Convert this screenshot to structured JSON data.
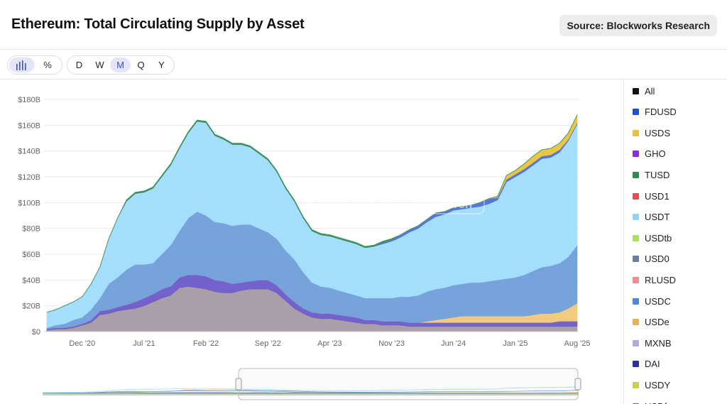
{
  "header": {
    "title": "Ethereum: Total Circulating Supply by Asset",
    "source_label": "Source: Blockworks Research"
  },
  "toolbar": {
    "modes": [
      {
        "name": "bar-chart-icon",
        "active": true
      },
      {
        "name": "percent-icon",
        "glyph": "%",
        "active": false
      }
    ],
    "periods": [
      {
        "label": "D",
        "active": false
      },
      {
        "label": "W",
        "active": false
      },
      {
        "label": "M",
        "active": true
      },
      {
        "label": "Q",
        "active": false
      },
      {
        "label": "Y",
        "active": false
      }
    ]
  },
  "watermark": {
    "brand": "Blockworks",
    "badge": "Research"
  },
  "colors": {
    "All": "#111111",
    "FDUSD": "#1f4ed8",
    "USDS": "#e8c33a",
    "GHO": "#8b2be2",
    "TUSD": "#2e8b57",
    "USD1": "#e05050",
    "USDT": "#8fd6fb",
    "USDtb": "#a8e05a",
    "USD0": "#6a7ea0",
    "RLUSD": "#f08c8c",
    "USDC": "#6a9fd8",
    "USDe": "#f0c070",
    "MXNB": "#b0a8e0",
    "DAI": "#2e2f9c",
    "USDY": "#c8d050",
    "USDf": "#b040c0",
    "base": "#a49aa4",
    "grid": "#e8e8e8",
    "axis_text": "#666666"
  },
  "legend": [
    {
      "label": "All",
      "color": "#111111"
    },
    {
      "label": "FDUSD",
      "color": "#1f4ed8"
    },
    {
      "label": "USDS",
      "color": "#e8c33a"
    },
    {
      "label": "GHO",
      "color": "#8b2be2"
    },
    {
      "label": "TUSD",
      "color": "#2e8b57"
    },
    {
      "label": "USD1",
      "color": "#e05050"
    },
    {
      "label": "USDT",
      "color": "#8fd6fb"
    },
    {
      "label": "USDtb",
      "color": "#a8e05a"
    },
    {
      "label": "USD0",
      "color": "#6a7ea0"
    },
    {
      "label": "RLUSD",
      "color": "#f08c8c"
    },
    {
      "label": "USDC",
      "color": "#4a8ad8"
    },
    {
      "label": "USDe",
      "color": "#e8b050"
    },
    {
      "label": "MXNB",
      "color": "#b0a8e0"
    },
    {
      "label": "DAI",
      "color": "#2e2f9c"
    },
    {
      "label": "USDY",
      "color": "#c8d050"
    },
    {
      "label": "USDf",
      "color": "#b040c0"
    }
  ],
  "chart_data": {
    "type": "area",
    "stacked": true,
    "title": "Ethereum: Total Circulating Supply by Asset",
    "x_tick_labels": [
      "Dec '20",
      "Jul '21",
      "Feb '22",
      "Sep '22",
      "Apr '23",
      "Nov '23",
      "Jun '24",
      "Jan '25",
      "Aug '25"
    ],
    "y_tick_labels": [
      "$0",
      "$20B",
      "$40B",
      "$60B",
      "$80B",
      "$100B",
      "$120B",
      "$140B",
      "$160B",
      "$180B"
    ],
    "ylim": [
      0,
      180
    ],
    "y_unit": "B USD",
    "x_start": "2020-08",
    "x_end": "2025-08",
    "grid": true,
    "legend_position": "right",
    "x": [
      "2020-08",
      "2020-09",
      "2020-10",
      "2020-11",
      "2020-12",
      "2021-01",
      "2021-02",
      "2021-03",
      "2021-04",
      "2021-05",
      "2021-06",
      "2021-07",
      "2021-08",
      "2021-09",
      "2021-10",
      "2021-11",
      "2021-12",
      "2022-01",
      "2022-02",
      "2022-03",
      "2022-04",
      "2022-05",
      "2022-06",
      "2022-07",
      "2022-08",
      "2022-09",
      "2022-10",
      "2022-11",
      "2022-12",
      "2023-01",
      "2023-02",
      "2023-03",
      "2023-04",
      "2023-05",
      "2023-06",
      "2023-07",
      "2023-08",
      "2023-09",
      "2023-10",
      "2023-11",
      "2023-12",
      "2024-01",
      "2024-02",
      "2024-03",
      "2024-04",
      "2024-05",
      "2024-06",
      "2024-07",
      "2024-08",
      "2024-09",
      "2024-10",
      "2024-11",
      "2024-12",
      "2025-01",
      "2025-02",
      "2025-03",
      "2025-04",
      "2025-05",
      "2025-06",
      "2025-07",
      "2025-08"
    ],
    "series": [
      {
        "name": "DAI",
        "color": "#a49aa4",
        "values": [
          1,
          2,
          2,
          3,
          5,
          7,
          13,
          14,
          16,
          17,
          18,
          20,
          23,
          26,
          28,
          34,
          35,
          34,
          33,
          31,
          30,
          30,
          32,
          33,
          33,
          33,
          30,
          24,
          18,
          14,
          11,
          10,
          10,
          9,
          8,
          7,
          6,
          6,
          5,
          5,
          5,
          4,
          4,
          4,
          4,
          4,
          4,
          4,
          4,
          4,
          4,
          4,
          4,
          4,
          4,
          4,
          4,
          4,
          4,
          4,
          4
        ]
      },
      {
        "name": "USDf",
        "color": "#6b58c9",
        "values": [
          1,
          1,
          1,
          1,
          1,
          2,
          3,
          3,
          3,
          4,
          5,
          6,
          6,
          7,
          7,
          8,
          9,
          10,
          10,
          9,
          9,
          7,
          6,
          6,
          7,
          7,
          6,
          5,
          5,
          4,
          4,
          4,
          4,
          4,
          4,
          4,
          3,
          3,
          3,
          3,
          3,
          3,
          3,
          3,
          3,
          3,
          3,
          3,
          3,
          3,
          3,
          3,
          3,
          3,
          3,
          3,
          3,
          3,
          4,
          4,
          4
        ]
      },
      {
        "name": "USDe",
        "color": "#f0c878",
        "values": [
          0,
          0,
          0,
          0,
          0,
          0,
          0,
          0,
          0,
          0,
          0,
          0,
          0,
          0,
          0,
          0,
          0,
          0,
          0,
          0,
          0,
          0,
          0,
          0,
          0,
          0,
          0,
          0,
          0,
          0,
          0,
          0,
          0,
          0,
          0,
          0,
          0,
          0,
          0,
          0,
          0,
          0,
          0,
          1,
          2,
          3,
          4,
          5,
          5,
          5,
          5,
          5,
          5,
          5,
          5,
          6,
          7,
          7,
          7,
          10,
          14
        ]
      },
      {
        "name": "USDC",
        "color": "#6e9ed8",
        "values": [
          1,
          2,
          3,
          5,
          5,
          8,
          10,
          20,
          23,
          27,
          29,
          26,
          24,
          27,
          32,
          36,
          44,
          49,
          47,
          45,
          45,
          45,
          45,
          44,
          40,
          37,
          36,
          34,
          33,
          28,
          23,
          21,
          20,
          19,
          18,
          17,
          17,
          17,
          18,
          18,
          19,
          20,
          21,
          23,
          24,
          24,
          25,
          25,
          26,
          26,
          27,
          28,
          29,
          30,
          32,
          34,
          36,
          37,
          38,
          40,
          45
        ]
      },
      {
        "name": "USDT",
        "color": "#a0dcfc",
        "values": [
          12,
          12,
          14,
          14,
          16,
          20,
          24,
          35,
          46,
          53,
          55,
          56,
          58,
          60,
          62,
          64,
          66,
          70,
          72,
          67,
          65,
          63,
          62,
          60,
          58,
          56,
          52,
          48,
          45,
          42,
          40,
          40,
          40,
          40,
          40,
          40,
          39,
          40,
          42,
          44,
          46,
          50,
          52,
          54,
          56,
          57,
          58,
          58,
          58,
          59,
          60,
          62,
          75,
          78,
          80,
          82,
          84,
          84,
          86,
          90,
          94
        ]
      },
      {
        "name": "FDUSD",
        "color": "#4f6fd6",
        "values": [
          0,
          0,
          0,
          0,
          0,
          0,
          0,
          0,
          0,
          0,
          0,
          0,
          0,
          0,
          0,
          0,
          0,
          0,
          0,
          0,
          0,
          0,
          0,
          0,
          0,
          0,
          0,
          0,
          0,
          0,
          0,
          0,
          0,
          0,
          0,
          0,
          0,
          0,
          1,
          1,
          2,
          2,
          2,
          2,
          3,
          2,
          2,
          2,
          2,
          3,
          4,
          2,
          2,
          2,
          2,
          2,
          2,
          2,
          2,
          1,
          1
        ]
      },
      {
        "name": "USDS",
        "color": "#e8c33a",
        "values": [
          0,
          0,
          0,
          0,
          0,
          0,
          0,
          0,
          0,
          0,
          0,
          0,
          0,
          0,
          0,
          0,
          0,
          0,
          0,
          0,
          0,
          0,
          0,
          0,
          0,
          0,
          0,
          0,
          0,
          0,
          0,
          0,
          0,
          0,
          0,
          0,
          0,
          0,
          0,
          0,
          0,
          0,
          0,
          0,
          0,
          0,
          0,
          0,
          0,
          0,
          0,
          1,
          3,
          3,
          4,
          5,
          5,
          5,
          5,
          5,
          6
        ]
      },
      {
        "name": "TUSD",
        "color": "#2e8b57",
        "values": [
          0,
          0,
          0,
          0,
          0,
          0,
          0,
          0,
          0,
          1,
          1,
          1,
          1,
          1,
          1,
          1,
          1,
          1,
          1,
          1,
          1,
          1,
          1,
          1,
          1,
          1,
          1,
          1,
          1,
          1,
          1,
          1,
          1,
          1,
          1,
          1,
          1,
          1,
          1,
          1,
          0,
          0,
          0,
          0,
          0,
          0,
          0,
          0,
          0,
          0,
          0,
          0,
          0,
          0,
          0,
          0,
          0,
          0,
          0,
          0,
          0
        ]
      }
    ]
  }
}
